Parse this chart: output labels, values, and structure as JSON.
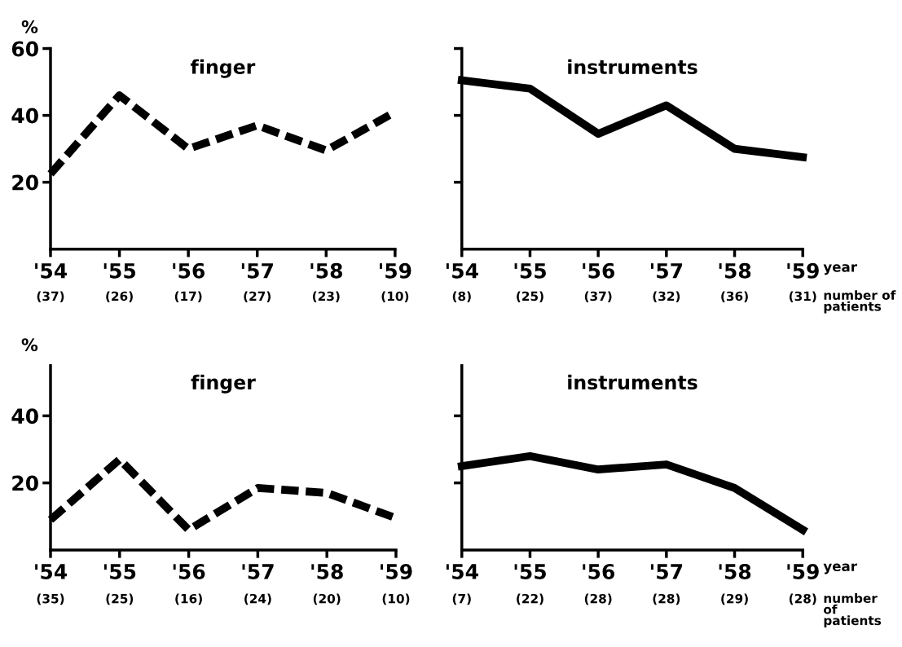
{
  "chart_data": [
    {
      "type": "line",
      "title": "finger",
      "ylabel": "%",
      "categories": [
        "'54",
        "'55",
        "'56",
        "'57",
        "'58",
        "'59"
      ],
      "series": [
        {
          "color": "#000000",
          "line_style": "dashed",
          "values": [
            22.5,
            46,
            30,
            37,
            29.5,
            41
          ]
        }
      ],
      "ylim": [
        0,
        60
      ],
      "yticks": [
        20,
        40,
        60
      ],
      "annotations": [
        "(37)",
        "(26)",
        "(17)",
        "(27)",
        "(23)",
        "(10)"
      ]
    },
    {
      "type": "line",
      "title": "instruments",
      "xlabel": "year",
      "categories": [
        "'54",
        "'55",
        "'56",
        "'57",
        "'58",
        "'59"
      ],
      "series": [
        {
          "color": "#000000",
          "line_style": "solid",
          "values": [
            50.5,
            48,
            34.5,
            43,
            30,
            27.5
          ]
        }
      ],
      "ylim": [
        0,
        60
      ],
      "yticks": [
        20,
        40,
        60
      ],
      "tick_labels": "x",
      "annotations": [
        "(8)",
        "(25)",
        "(37)",
        "(32)",
        "(36)",
        "(31)",
        "number of\npatients"
      ]
    },
    {
      "type": "line",
      "title": "finger",
      "ylabel": "%",
      "categories": [
        "'54",
        "'55",
        "'56",
        "'57",
        "'58",
        "'59"
      ],
      "series": [
        {
          "color": "#000000",
          "line_style": "dashed",
          "values": [
            9,
            27,
            6,
            18.5,
            17,
            9.5
          ]
        }
      ],
      "ylim": [
        0,
        55
      ],
      "yticks": [
        20,
        40
      ],
      "annotations": [
        "(35)",
        "(25)",
        "(16)",
        "(24)",
        "(20)",
        "(10)"
      ]
    },
    {
      "type": "line",
      "title": "instruments",
      "xlabel": "year",
      "categories": [
        "'54",
        "'55",
        "'56",
        "'57",
        "'58",
        "'59"
      ],
      "series": [
        {
          "color": "#000000",
          "line_style": "solid",
          "values": [
            25,
            28,
            24,
            25.5,
            18.5,
            6
          ]
        }
      ],
      "ylim": [
        0,
        55
      ],
      "yticks": [
        20,
        40
      ],
      "tick_labels": "x",
      "annotations": [
        "(7)",
        "(22)",
        "(28)",
        "(28)",
        "(29)",
        "(28)",
        "number\nof\npatients"
      ]
    }
  ]
}
